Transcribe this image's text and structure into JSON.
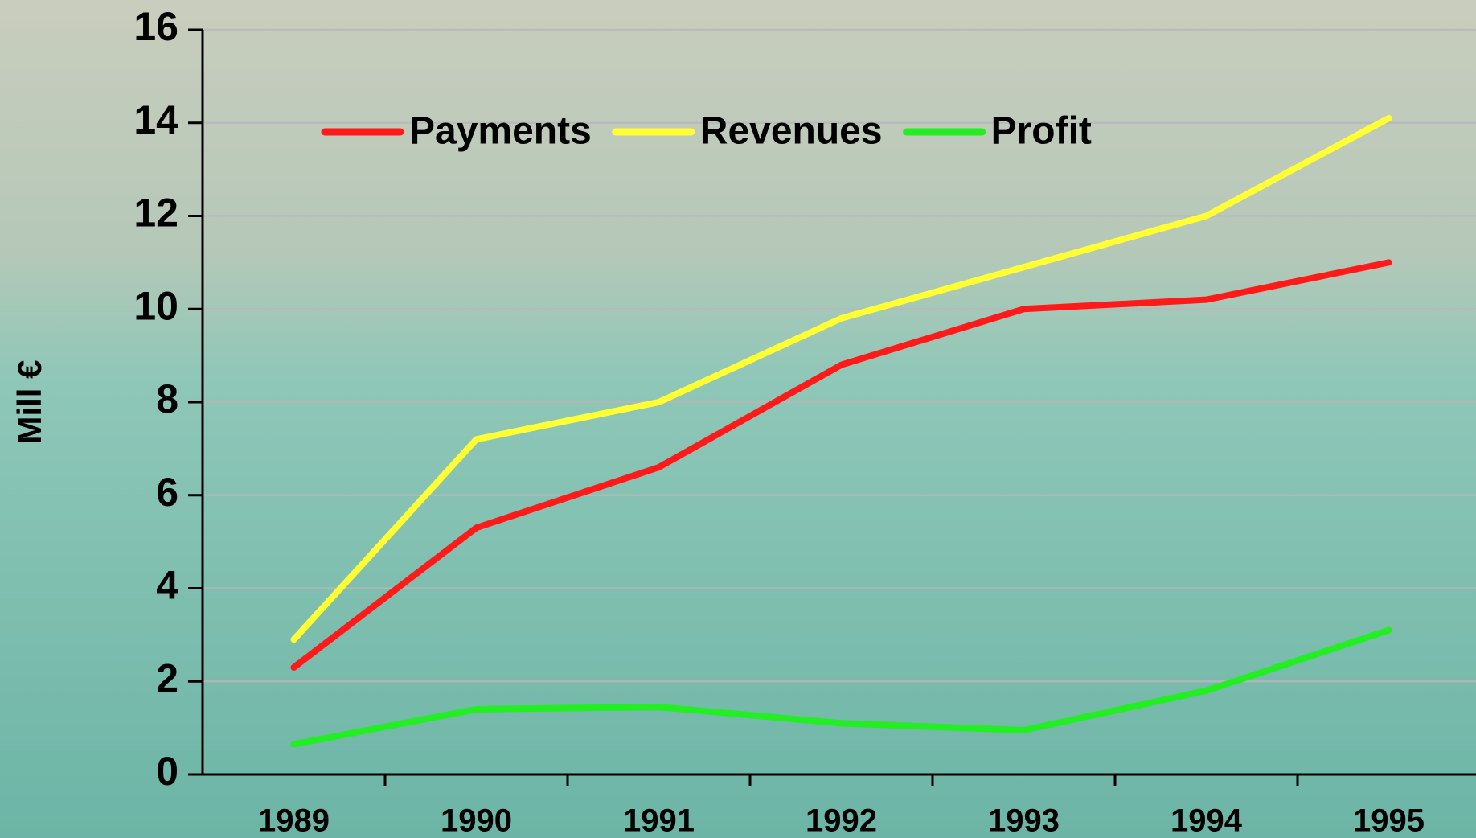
{
  "chart_data": {
    "type": "line",
    "y_label": "Mill €",
    "categories": [
      "1989",
      "1990",
      "1991",
      "1992",
      "1993",
      "1994",
      "1995"
    ],
    "series": [
      {
        "name": "Payments",
        "color": "#ff1a1a",
        "values": [
          2.3,
          5.3,
          6.6,
          8.8,
          10.0,
          10.2,
          11.0
        ]
      },
      {
        "name": "Revenues",
        "color": "#ffff33",
        "values": [
          2.9,
          7.2,
          8.0,
          9.8,
          10.9,
          12.0,
          14.1
        ]
      },
      {
        "name": "Profit",
        "color": "#22ee22",
        "values": [
          0.65,
          1.4,
          1.45,
          1.1,
          0.95,
          1.8,
          3.1
        ]
      }
    ],
    "ylim": [
      0,
      16
    ],
    "yticks": [
      0,
      2,
      4,
      6,
      8,
      10,
      12,
      14,
      16
    ],
    "grid": true,
    "legend": "top"
  }
}
